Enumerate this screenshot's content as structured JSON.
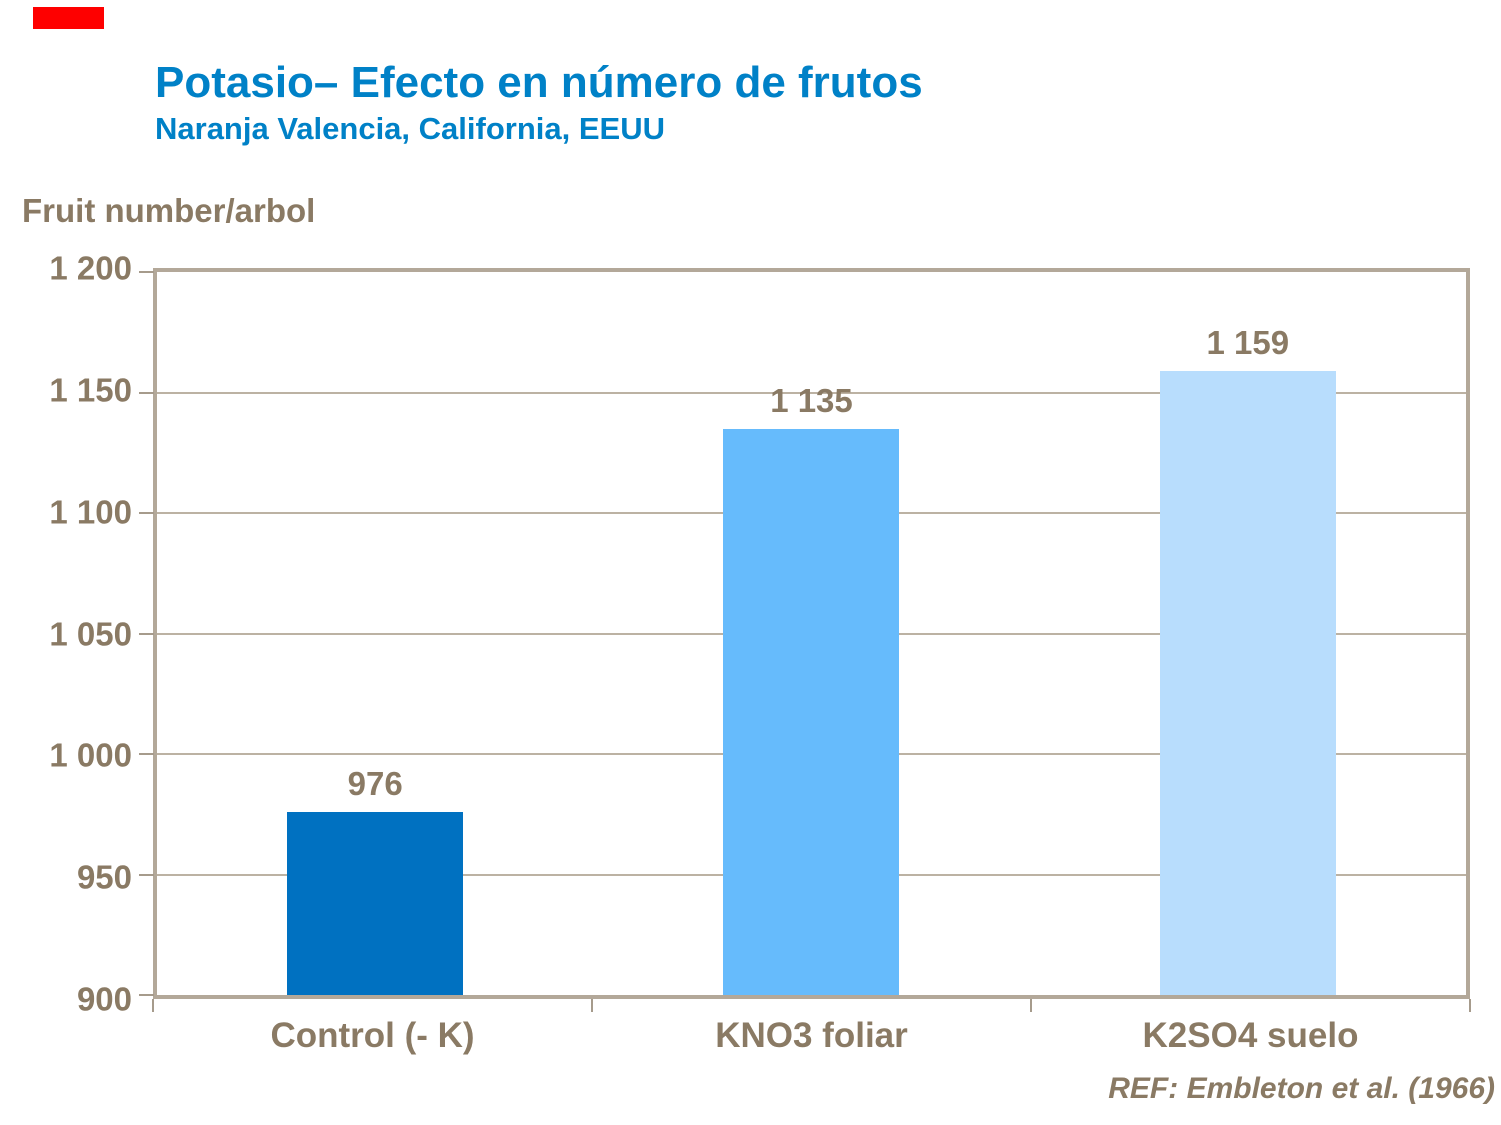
{
  "slide": {
    "accent_flag_color": "#FE0000"
  },
  "chart_data": {
    "type": "bar",
    "title": "Potasio– Efecto en número de frutos",
    "subtitle": "Naranja Valencia, California, EEUU",
    "ylabel": "Fruit number/arbol",
    "reference": "REF: Embleton et al. (1966)",
    "ylim": [
      900,
      1200
    ],
    "grid": "horizontal",
    "legend": "none",
    "categories": [
      "Control (- K)",
      "KNO3 foliar",
      "K2SO4 suelo"
    ],
    "values": [
      976,
      1135,
      1159
    ],
    "bars": [
      {
        "category": "Control (- K)",
        "value": 976,
        "value_label": "976",
        "color": "#0071C1"
      },
      {
        "category": "KNO3 foliar",
        "value": 1135,
        "value_label": "1 135",
        "color": "#66BBFC"
      },
      {
        "category": "K2SO4 suelo",
        "value": 1159,
        "value_label": "1 159",
        "color": "#B8DDFD"
      }
    ],
    "y_ticks": [
      {
        "value": 900,
        "label": "900"
      },
      {
        "value": 950,
        "label": "950"
      },
      {
        "value": 1000,
        "label": "1 000"
      },
      {
        "value": 1050,
        "label": "1 050"
      },
      {
        "value": 1100,
        "label": "1 100"
      },
      {
        "value": 1150,
        "label": "1 150"
      },
      {
        "value": 1200,
        "label": "1 200"
      }
    ],
    "colors": {
      "title_blue": "#0081C7",
      "axis_text_brown": "#8A7A64",
      "frame": "#B3A899",
      "gridline": "#BCB2A3"
    }
  }
}
